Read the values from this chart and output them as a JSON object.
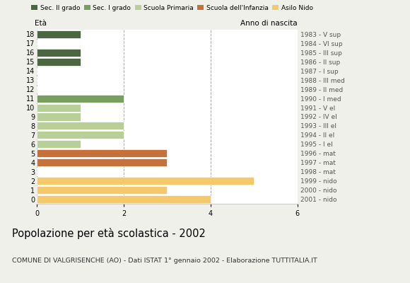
{
  "ages": [
    18,
    17,
    16,
    15,
    14,
    13,
    12,
    11,
    10,
    9,
    8,
    7,
    6,
    5,
    4,
    3,
    2,
    1,
    0
  ],
  "years": [
    "1983 - V sup",
    "1984 - VI sup",
    "1985 - III sup",
    "1986 - II sup",
    "1987 - I sup",
    "1988 - III med",
    "1989 - II med",
    "1990 - I med",
    "1991 - V el",
    "1992 - IV el",
    "1993 - III el",
    "1994 - II el",
    "1995 - I el",
    "1996 - mat",
    "1997 - mat",
    "1998 - mat",
    "1999 - nido",
    "2000 - nido",
    "2001 - nido"
  ],
  "values": [
    1,
    0,
    1,
    1,
    0,
    0,
    0,
    2,
    1,
    1,
    2,
    2,
    1,
    3,
    3,
    0,
    5,
    3,
    4
  ],
  "colors": [
    "#4a6741",
    "#4a6741",
    "#4a6741",
    "#4a6741",
    "#4a6741",
    "#7a9e5e",
    "#7a9e5e",
    "#7a9e5e",
    "#b8d098",
    "#b8d098",
    "#b8d098",
    "#b8d098",
    "#b8d098",
    "#c8703a",
    "#c8703a",
    "#c8703a",
    "#f5c96a",
    "#f5c96a",
    "#f5c96a"
  ],
  "legend_labels": [
    "Sec. II grado",
    "Sec. I grado",
    "Scuola Primaria",
    "Scuola dell'Infanzia",
    "Asilo Nido"
  ],
  "legend_colors": [
    "#4a6741",
    "#7a9e5e",
    "#b8d098",
    "#c8703a",
    "#f5c96a"
  ],
  "title": "Popolazione per età scolastica - 2002",
  "subtitle": "COMUNE DI VALGRISENCHE (AO) - Dati ISTAT 1° gennaio 2002 - Elaborazione TUTTITALIA.IT",
  "ylabel_left": "Età",
  "ylabel_right": "Anno di nascita",
  "xlim": [
    0,
    6
  ],
  "xticks": [
    0,
    2,
    4,
    6
  ],
  "background_color": "#f0f0eb",
  "plot_background": "#ffffff"
}
